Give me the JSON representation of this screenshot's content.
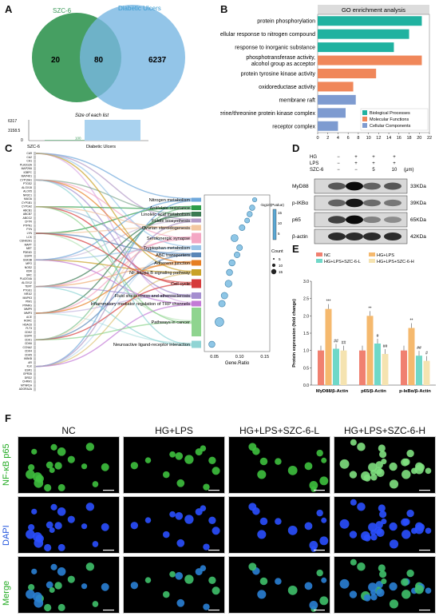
{
  "panels": {
    "A": "A",
    "B": "B",
    "C": "C",
    "D": "D",
    "E": "E",
    "F": "F"
  },
  "panelA": {
    "venn": {
      "left_label": "SZC-6",
      "right_label": "Diabetic Ulcers",
      "left_only": "20",
      "overlap": "80",
      "right_only": "6237"
    },
    "sizes_title": "Size of each list",
    "yticks": [
      "6317",
      "3158.5",
      "0"
    ],
    "bars": [
      {
        "label": "SZC-6",
        "value": 100,
        "value_text": "100"
      },
      {
        "label": "Diabetic Ulcers",
        "value": 6317,
        "value_text": "6317"
      }
    ]
  },
  "panelC": {
    "genes": [
      "CA9",
      "CA2",
      "CA1",
      "PLA2G2A",
      "MAP2K6",
      "IGBPC",
      "MAP4K1",
      "CYP19A1",
      "PTGS2",
      "ALOX15",
      "ALOX5",
      "NR3C1",
      "MAOA",
      "CYP1B1",
      "CYP1A2",
      "ABCB1",
      "ABCB7",
      "ABCG2",
      "CFTR",
      "PTPN1",
      "FYN",
      "LYN",
      "LCK",
      "CSNK2A1",
      "MAPT",
      "MET",
      "PDE4D",
      "EGFR",
      "GSK3B",
      "MPO",
      "NOS2",
      "KDR",
      "SRC",
      "PLA2G4A",
      "ALOX12",
      "TERT",
      "PTGS1",
      "NR1I2",
      "MAPK3",
      "PIM1",
      "PPARG",
      "MMP9",
      "MMP3",
      "ACE",
      "RORC",
      "HDAC6",
      "FLT3",
      "CDK2",
      "EGFR",
      "CDK1",
      "CDK6",
      "CCNA2",
      "CDK4",
      "CDK5",
      "IKBKB",
      "AR",
      "KLK",
      "ESR1",
      "GPR35",
      "DRD2",
      "CHRM1",
      "MTNR1A",
      "ADORA2A"
    ],
    "pathways": [
      "Nitrogen metabolism",
      "Antifolate resistance",
      "Linoleic acid metabolism",
      "Folate biosynthesis",
      "Ovarian steroidogenesis",
      "Serotonergic synapse",
      "Tryptophan metabolism",
      "ABC transporters",
      "Adherens junction",
      "NF-kappa B signaling pathway",
      "Cell cycle",
      "Fluid shear stress and atherosclerosis",
      "Inflammatory mediator regulation of TRP channels",
      "Pathways in cancer",
      "Neuroactive ligand-receptor interaction"
    ],
    "pathway_colors": [
      "#6fa8dc",
      "#2e9d4a",
      "#3a7a52",
      "#b39bc8",
      "#f3c7a0",
      "#f4a7c4",
      "#9ac5e8",
      "#5a87b8",
      "#e67e22",
      "#c9a227",
      "#d63b3b",
      "#a58fd0",
      "#c37ad6",
      "#8fd48f",
      "#8fd4d4"
    ],
    "dot_x": [
      0.13,
      0.125,
      0.12,
      0.115,
      0.105,
      0.09,
      0.1,
      0.095,
      0.085,
      0.08,
      0.078,
      0.07,
      0.065,
      0.06,
      0.045
    ],
    "dot_count": [
      2,
      4,
      4,
      3,
      5,
      9,
      5,
      5,
      6,
      6,
      8,
      7,
      7,
      15,
      6
    ],
    "xticks": [
      "0.05",
      "0.10",
      "0.15"
    ],
    "xlabel": "Gene.Ratio",
    "colorbar_title": "-log10(Pvalue)",
    "colorbar_ticks": [
      "15",
      "10",
      "5"
    ],
    "count_title": "Count",
    "count_items": [
      "5",
      "10",
      "15"
    ]
  },
  "chart_data": [
    {
      "type": "bar",
      "title": "GO enrichment analysis",
      "categories": [
        "protein phosphorylation",
        "cellular response to nitrogen compound",
        "response to inorganic substance",
        "phosphotransferase activity, alcohol group as acceptor",
        "protein tyrosine kinase activity",
        "oxidoreductase activity",
        "membrane raft",
        "serine/threonine protein kinase complex",
        "receptor complex"
      ],
      "values": [
        20.5,
        18,
        15,
        20.5,
        11.5,
        7,
        7.5,
        5.5,
        4
      ],
      "groups": [
        "Biological Processes",
        "Biological Processes",
        "Biological Processes",
        "Molecular Functions",
        "Molecular Functions",
        "Molecular Functions",
        "Cellular Components",
        "Cellular Components",
        "Cellular Components"
      ],
      "legend": [
        {
          "name": "Biological Processes",
          "color": "#20b2a0"
        },
        {
          "name": "Molecular Functions",
          "color": "#f0875a"
        },
        {
          "name": "Cellular Components",
          "color": "#7e9bd0"
        }
      ],
      "xlim": [
        0,
        22
      ],
      "xticks": [
        "0",
        "2",
        "4",
        "6",
        "8",
        "10",
        "12",
        "14",
        "16",
        "18",
        "20",
        "22"
      ]
    },
    {
      "type": "bar",
      "ylabel": "Protein expression (fold change)",
      "categories": [
        "MyD88/β-Actin",
        "p65/β-Actin",
        "p-IκBα/β-Actin"
      ],
      "series": [
        {
          "name": "NC",
          "color": "#f08070",
          "values": [
            1.0,
            1.0,
            1.0
          ]
        },
        {
          "name": "HG+LPS",
          "color": "#f5b96e",
          "values": [
            2.2,
            2.0,
            1.65
          ]
        },
        {
          "name": "HG+LPS+SZC-6-L",
          "color": "#70d8c8",
          "values": [
            1.05,
            1.2,
            0.85
          ]
        },
        {
          "name": "HG+LPS+SZC-6-H",
          "color": "#f5e3b0",
          "values": [
            1.0,
            0.9,
            0.7
          ]
        }
      ],
      "annotations": [
        [
          "",
          "***",
          "##",
          "##"
        ],
        [
          "",
          "**",
          "#",
          "##"
        ],
        [
          "",
          "**",
          "##",
          "#"
        ]
      ],
      "ylim": [
        0,
        3.0
      ],
      "yticks": [
        "0.0",
        "0.5",
        "1.0",
        "1.5",
        "2.0",
        "2.5",
        "3.0"
      ]
    }
  ],
  "panelD": {
    "treatments": [
      {
        "label": "HG",
        "values": [
          "−",
          "+",
          "+",
          "+"
        ]
      },
      {
        "label": "LPS",
        "values": [
          "−",
          "+",
          "+",
          "+"
        ]
      },
      {
        "label": "SZC-6",
        "values": [
          "−",
          "−",
          "5",
          "10"
        ]
      }
    ],
    "unit": "(μm)",
    "blots": [
      {
        "name": "MyD88",
        "kda": "33KDa",
        "intensity": [
          0.6,
          0.95,
          0.55,
          0.6
        ]
      },
      {
        "name": "p-IKBα",
        "kda": "39KDa",
        "intensity": [
          0.55,
          0.9,
          0.5,
          0.45
        ]
      },
      {
        "name": "p65",
        "kda": "65KDa",
        "intensity": [
          0.7,
          0.95,
          0.4,
          0.35
        ]
      },
      {
        "name": "β-actin",
        "kda": "42KDa",
        "intensity": [
          0.8,
          0.8,
          0.8,
          0.8
        ]
      }
    ]
  },
  "panelF": {
    "columns": [
      "NC",
      "HG+LPS",
      "HG+LPS+SZC-6-L",
      "HG+LPS+SZC-6-H"
    ],
    "rows": [
      {
        "label": "NF-κB p65",
        "color": "#22aa22"
      },
      {
        "label": "DAPI",
        "color": "#2255dd"
      },
      {
        "label": "Merge",
        "color": "#22aa22"
      }
    ]
  }
}
